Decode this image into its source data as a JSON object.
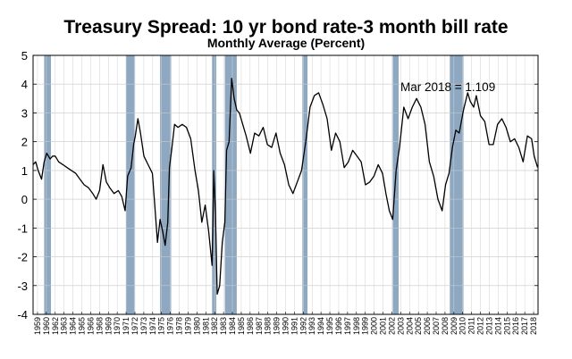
{
  "chart_data": {
    "type": "line",
    "title": "Treasury Spread: 10 yr bond rate-3 month bill rate",
    "subtitle": "Monthly Average (Percent)",
    "xlabel": "",
    "ylabel": "",
    "xlim": [
      1959,
      2018.25
    ],
    "ylim": [
      -4,
      5
    ],
    "grid": true,
    "legend": "none",
    "line_color": "#000000",
    "recession_color": "#6f8fb1",
    "yticks": [
      -4,
      -3,
      -2,
      -1,
      0,
      1,
      2,
      3,
      4,
      5
    ],
    "xtick_labels": [
      "1959",
      "1960",
      "1962",
      "1963",
      "1964",
      "1965",
      "1966",
      "1968",
      "1969",
      "1970",
      "1971",
      "1972",
      "1973",
      "1974",
      "1975",
      "1976",
      "1978",
      "1979",
      "1980",
      "1981",
      "1982",
      "1983",
      "1984",
      "1985",
      "1986",
      "1987",
      "1988",
      "1989",
      "1990",
      "1991",
      "1992",
      "1993",
      "1994",
      "1995",
      "1996",
      "1997",
      "1998",
      "1999",
      "2000",
      "2001",
      "2002",
      "2003",
      "2004",
      "2005",
      "2006",
      "2007",
      "2008",
      "2009",
      "2010",
      "2011",
      "2012",
      "2013",
      "2014",
      "2015",
      "2016",
      "2017",
      "2018"
    ],
    "recessions": [
      [
        1960.3,
        1961.1
      ],
      [
        1969.9,
        1970.9
      ],
      [
        1973.9,
        1975.2
      ],
      [
        1980.0,
        1980.5
      ],
      [
        1981.5,
        1982.9
      ],
      [
        1990.6,
        1991.2
      ],
      [
        2001.2,
        2001.9
      ],
      [
        2007.9,
        2009.5
      ]
    ],
    "annotation": "Mar 2018 = 1.109",
    "x": [
      1959.0,
      1959.3,
      1959.6,
      1960.0,
      1960.3,
      1960.6,
      1961.0,
      1961.3,
      1961.6,
      1962.0,
      1962.5,
      1963.0,
      1963.5,
      1964.0,
      1964.5,
      1965.0,
      1965.5,
      1966.0,
      1966.4,
      1966.8,
      1967.2,
      1967.6,
      1968.0,
      1968.5,
      1969.0,
      1969.4,
      1969.8,
      1970.1,
      1970.5,
      1970.8,
      1971.0,
      1971.3,
      1971.6,
      1972.0,
      1972.5,
      1973.0,
      1973.3,
      1973.6,
      1973.9,
      1974.2,
      1974.5,
      1974.8,
      1975.0,
      1975.3,
      1975.6,
      1976.0,
      1976.5,
      1977.0,
      1977.5,
      1978.0,
      1978.4,
      1978.8,
      1979.2,
      1979.6,
      1980.0,
      1980.2,
      1980.4,
      1980.6,
      1980.9,
      1981.2,
      1981.5,
      1981.7,
      1982.0,
      1982.3,
      1982.6,
      1982.9,
      1983.2,
      1983.6,
      1984.0,
      1984.5,
      1985.0,
      1985.5,
      1986.0,
      1986.5,
      1987.0,
      1987.5,
      1988.0,
      1988.5,
      1989.0,
      1989.5,
      1990.0,
      1990.5,
      1991.0,
      1991.5,
      1992.0,
      1992.5,
      1993.0,
      1993.5,
      1994.0,
      1994.5,
      1995.0,
      1995.5,
      1996.0,
      1996.5,
      1997.0,
      1997.5,
      1998.0,
      1998.5,
      1999.0,
      1999.5,
      2000.0,
      2000.4,
      2000.8,
      2001.2,
      2001.6,
      2002.0,
      2002.5,
      2003.0,
      2003.5,
      2004.0,
      2004.5,
      2005.0,
      2005.5,
      2006.0,
      2006.5,
      2007.0,
      2007.4,
      2007.8,
      2008.2,
      2008.6,
      2009.0,
      2009.5,
      2010.0,
      2010.3,
      2010.7,
      2011.0,
      2011.5,
      2012.0,
      2012.5,
      2013.0,
      2013.5,
      2014.0,
      2014.5,
      2015.0,
      2015.5,
      2016.0,
      2016.5,
      2017.0,
      2017.5,
      2017.8,
      2018.0,
      2018.2
    ],
    "y": [
      1.2,
      1.3,
      1.0,
      0.7,
      1.3,
      1.6,
      1.4,
      1.5,
      1.5,
      1.3,
      1.2,
      1.1,
      1.0,
      0.9,
      0.7,
      0.5,
      0.4,
      0.2,
      0.0,
      0.3,
      1.2,
      0.6,
      0.4,
      0.2,
      0.3,
      0.1,
      -0.4,
      0.8,
      1.1,
      1.9,
      2.2,
      2.8,
      2.3,
      1.5,
      1.2,
      0.9,
      -0.3,
      -1.5,
      -0.7,
      -1.1,
      -1.6,
      -0.8,
      1.1,
      1.8,
      2.6,
      2.5,
      2.6,
      2.5,
      2.1,
      1.0,
      0.3,
      -0.8,
      -0.2,
      -1.1,
      -2.3,
      1.0,
      -0.5,
      -3.3,
      -3.0,
      -1.5,
      -0.8,
      1.7,
      2.0,
      4.2,
      3.5,
      3.1,
      3.0,
      2.6,
      2.2,
      1.6,
      2.3,
      2.2,
      2.5,
      1.9,
      1.8,
      2.3,
      1.6,
      1.2,
      0.5,
      0.2,
      0.6,
      1.0,
      2.0,
      3.2,
      3.6,
      3.7,
      3.3,
      2.8,
      1.7,
      2.3,
      2.0,
      1.1,
      1.3,
      1.7,
      1.5,
      1.3,
      0.5,
      0.6,
      0.8,
      1.2,
      0.9,
      0.2,
      -0.4,
      -0.7,
      1.0,
      1.8,
      3.2,
      2.8,
      3.2,
      3.5,
      3.2,
      2.6,
      1.3,
      0.8,
      0.0,
      -0.4,
      0.5,
      0.9,
      1.8,
      2.4,
      2.3,
      3.1,
      3.7,
      3.4,
      3.2,
      3.6,
      2.9,
      2.7,
      1.9,
      1.9,
      2.6,
      2.8,
      2.5,
      2.0,
      2.1,
      1.8,
      1.3,
      2.2,
      2.1,
      1.5,
      1.3,
      1.109
    ]
  }
}
